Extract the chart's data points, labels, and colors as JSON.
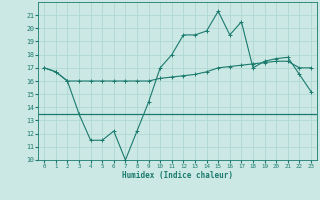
{
  "xlabel": "Humidex (Indice chaleur)",
  "x": [
    0,
    1,
    2,
    3,
    4,
    5,
    6,
    7,
    8,
    9,
    10,
    11,
    12,
    13,
    14,
    15,
    16,
    17,
    18,
    19,
    20,
    21,
    22,
    23
  ],
  "line1": [
    17.0,
    16.7,
    16.0,
    13.5,
    11.5,
    11.5,
    12.2,
    10.0,
    12.2,
    14.4,
    17.0,
    18.0,
    19.5,
    19.5,
    19.8,
    21.3,
    19.5,
    20.5,
    17.0,
    17.5,
    17.7,
    17.8,
    16.5,
    15.2
  ],
  "line2": [
    17.0,
    16.7,
    16.0,
    16.0,
    16.0,
    16.0,
    16.0,
    16.0,
    16.0,
    16.0,
    16.2,
    16.3,
    16.4,
    16.5,
    16.7,
    17.0,
    17.1,
    17.2,
    17.3,
    17.4,
    17.5,
    17.5,
    17.0,
    17.0
  ],
  "hline_y": 13.5,
  "line_color": "#1a7a6e",
  "bg_color": "#cce8e4",
  "grid_color": "#b0d8d4",
  "ylim": [
    10,
    22
  ],
  "yticks": [
    10,
    11,
    12,
    13,
    14,
    15,
    16,
    17,
    18,
    19,
    20,
    21
  ],
  "xlim": [
    -0.5,
    23.5
  ],
  "xticks": [
    0,
    1,
    2,
    3,
    4,
    5,
    6,
    7,
    8,
    9,
    10,
    11,
    12,
    13,
    14,
    15,
    16,
    17,
    18,
    19,
    20,
    21,
    22,
    23
  ]
}
